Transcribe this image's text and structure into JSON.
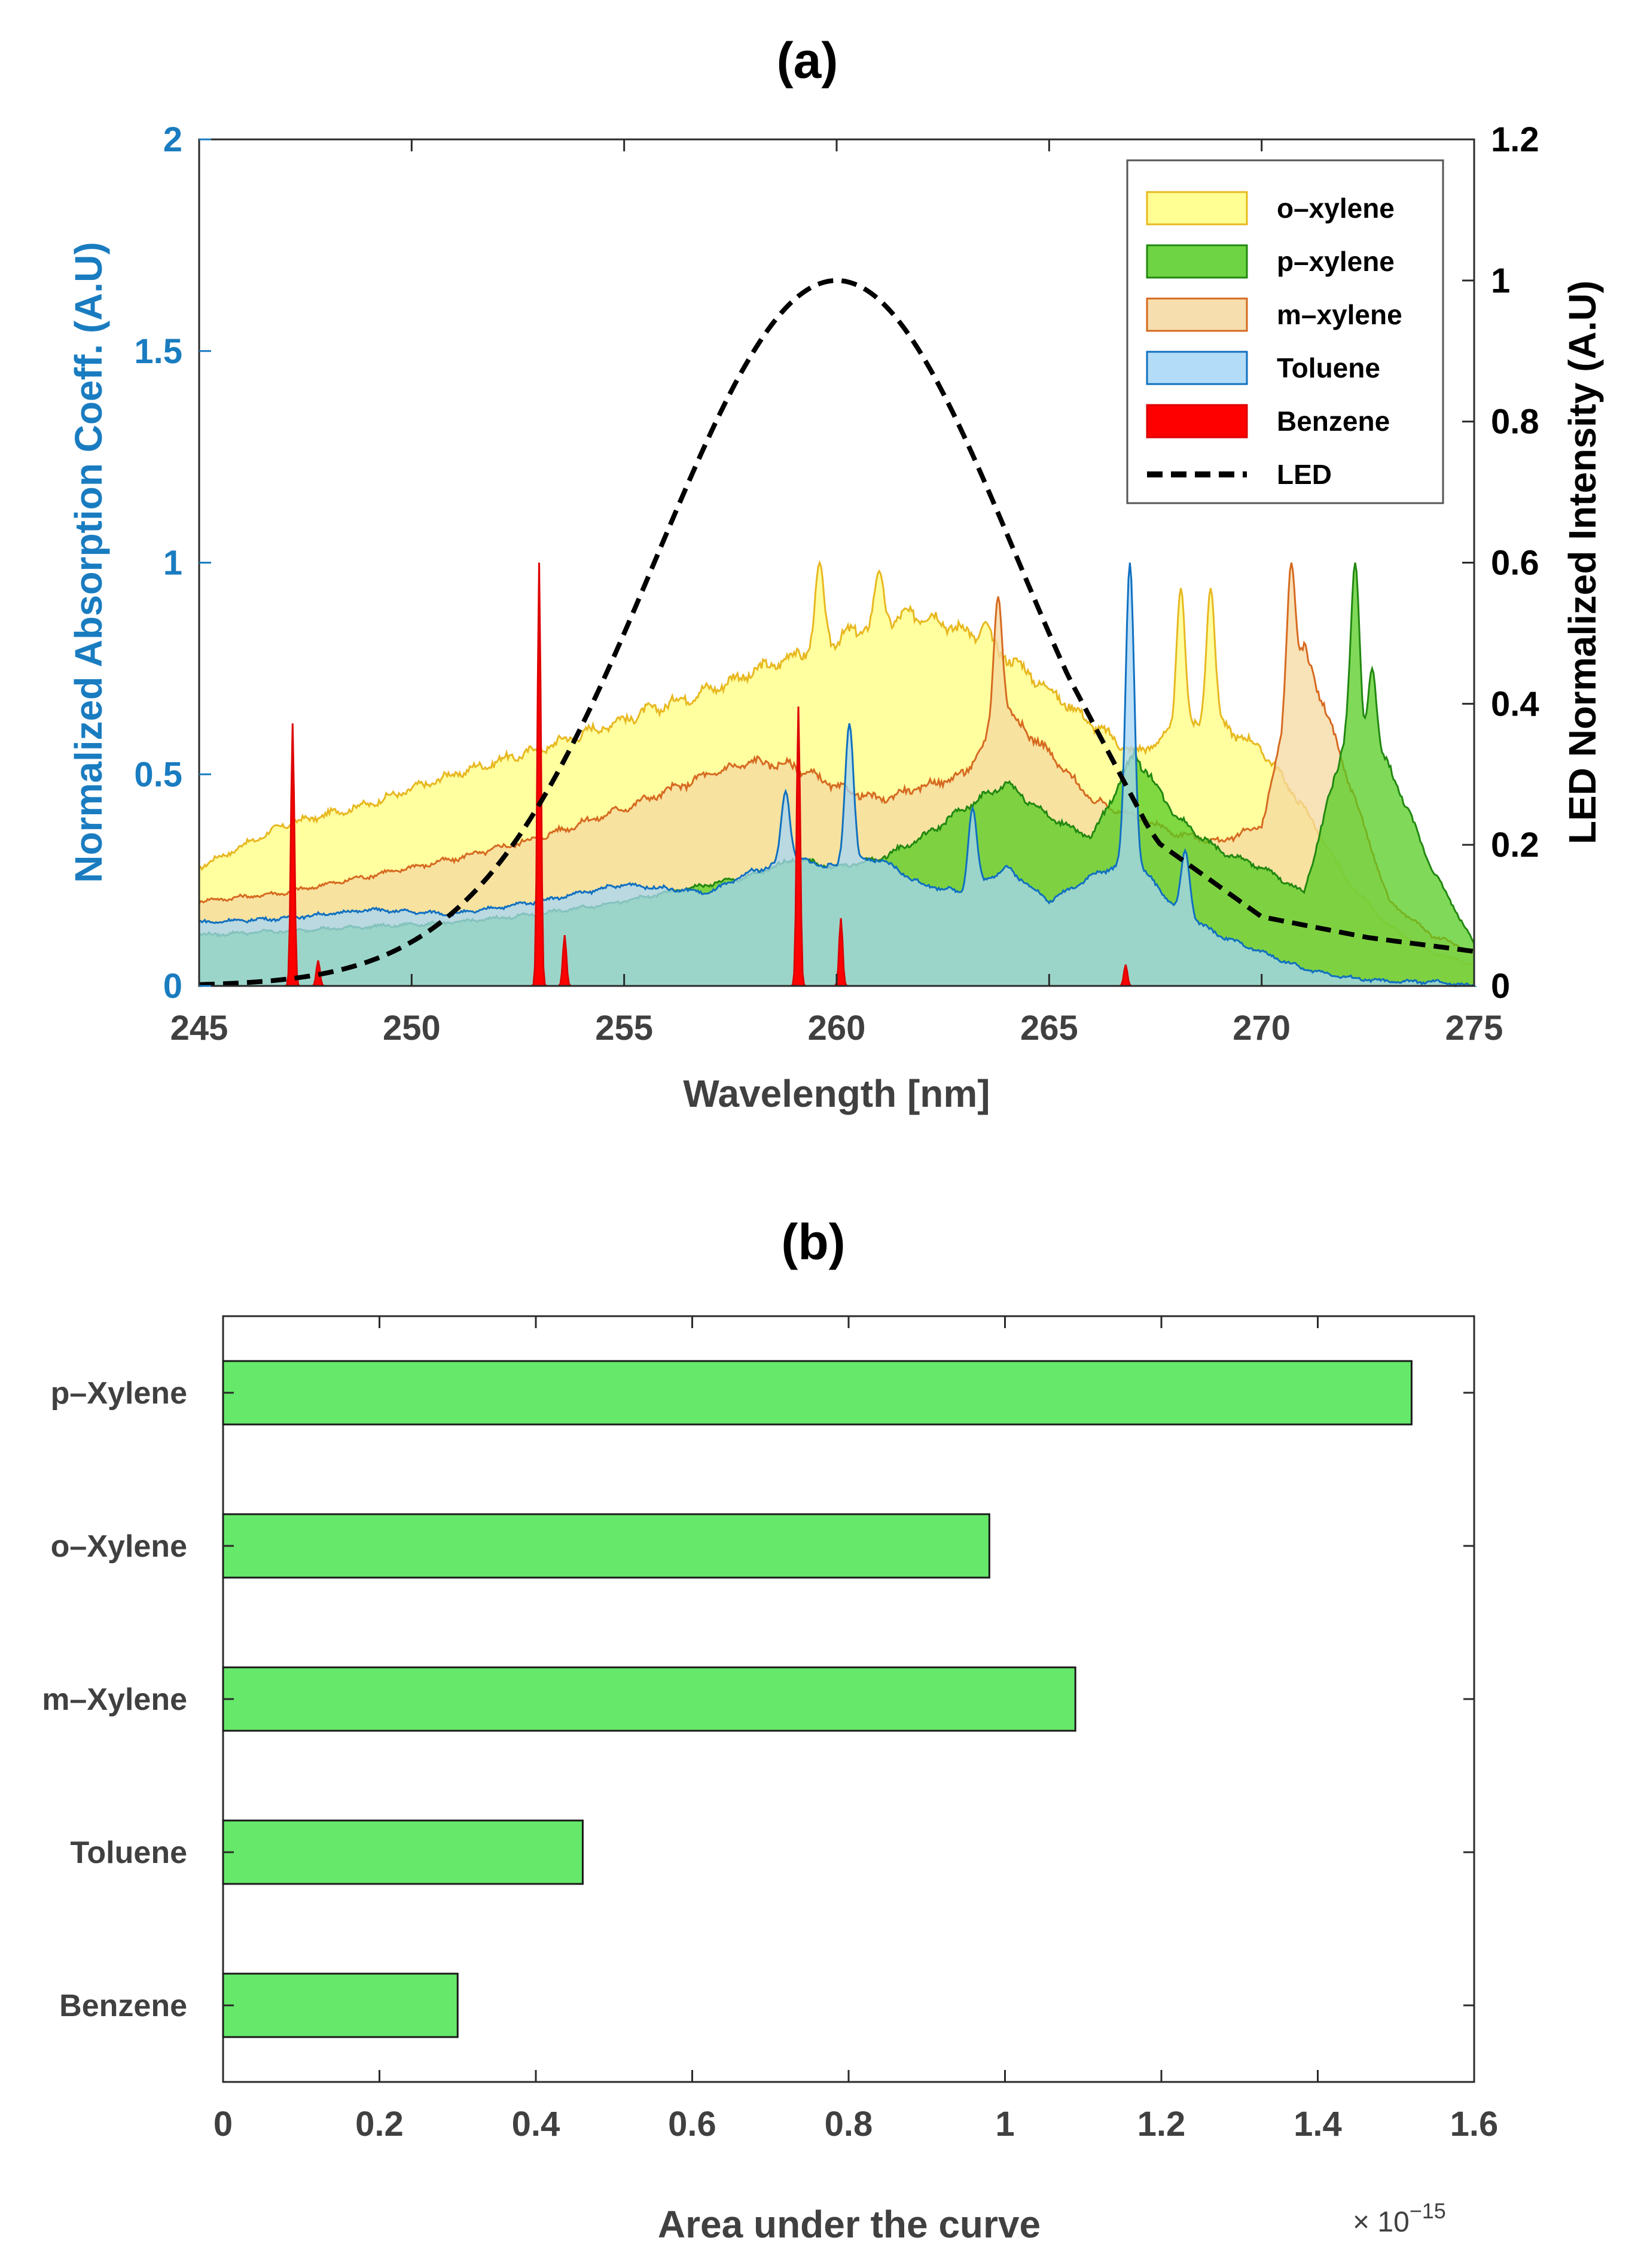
{
  "chart_data": [
    {
      "panel_label": "(a)",
      "type": "area",
      "xlabel": "Wavelength [nm]",
      "ylabel": "Normalized Absorption Coeff. (A.U)",
      "y2label": "LED Normalized Intensity (A.U)",
      "xlim": [
        245,
        275
      ],
      "ylim": [
        0,
        2
      ],
      "y2lim": [
        0,
        1.2
      ],
      "xticks": [
        245,
        250,
        255,
        260,
        265,
        270,
        275
      ],
      "xtick_labels": [
        "245",
        "250",
        "255",
        "260",
        "265",
        "270",
        "275"
      ],
      "yticks": [
        0,
        0.5,
        1,
        1.5,
        2
      ],
      "ytick_labels": [
        "0",
        "0.5",
        "1",
        "1.5",
        "2"
      ],
      "y2ticks": [
        0,
        0.2,
        0.4,
        0.6,
        0.8,
        1,
        1.2
      ],
      "y2tick_labels": [
        "0",
        "0.2",
        "0.4",
        "0.6",
        "0.8",
        "1",
        "1.2"
      ],
      "legend_position": "top-right",
      "series": [
        {
          "name": "o–xylene",
          "fill": "#ffff80",
          "edge": "#e8b820",
          "x": [
            245,
            247,
            249,
            251,
            253,
            255,
            257,
            258,
            259,
            260,
            261,
            262,
            263,
            264,
            265,
            266,
            267,
            268,
            269,
            270,
            271,
            272,
            273,
            274,
            275
          ],
          "y": [
            0.28,
            0.38,
            0.43,
            0.5,
            0.56,
            0.63,
            0.7,
            0.74,
            0.78,
            0.82,
            0.86,
            0.88,
            0.84,
            0.78,
            0.7,
            0.62,
            0.55,
            0.6,
            0.62,
            0.56,
            0.42,
            0.25,
            0.14,
            0.08,
            0.05
          ],
          "peaks": [
            [
              259.6,
              1.0
            ],
            [
              261.0,
              0.98
            ],
            [
              263.5,
              0.86
            ],
            [
              268.1,
              0.94
            ],
            [
              268.8,
              0.94
            ]
          ]
        },
        {
          "name": "m–xylene",
          "fill": "#f5d8a0",
          "edge": "#d66a20",
          "x": [
            245,
            247,
            249,
            251,
            253,
            255,
            257,
            258,
            259,
            260,
            261,
            262,
            263,
            264,
            265,
            266,
            267,
            268,
            269,
            270,
            271,
            272,
            273,
            274,
            275
          ],
          "y": [
            0.2,
            0.22,
            0.26,
            0.3,
            0.35,
            0.42,
            0.5,
            0.53,
            0.52,
            0.47,
            0.44,
            0.47,
            0.5,
            0.65,
            0.55,
            0.44,
            0.4,
            0.36,
            0.34,
            0.38,
            0.8,
            0.5,
            0.2,
            0.12,
            0.08
          ],
          "peaks": [
            [
              263.8,
              0.92
            ],
            [
              270.7,
              1.0
            ]
          ]
        },
        {
          "name": "p–xylene",
          "fill": "#55cc22",
          "edge": "#228811",
          "x": [
            245,
            247,
            249,
            251,
            253,
            255,
            257,
            258,
            259,
            260,
            261,
            262,
            263,
            264,
            265,
            266,
            267,
            268,
            269,
            270,
            271,
            272,
            273,
            274,
            275
          ],
          "y": [
            0.12,
            0.13,
            0.14,
            0.15,
            0.17,
            0.2,
            0.24,
            0.26,
            0.3,
            0.28,
            0.3,
            0.35,
            0.42,
            0.48,
            0.4,
            0.35,
            0.55,
            0.4,
            0.32,
            0.28,
            0.22,
            0.6,
            0.52,
            0.28,
            0.1
          ],
          "peaks": [
            [
              272.2,
              1.0
            ],
            [
              272.6,
              0.75
            ]
          ]
        },
        {
          "name": "Toluene",
          "fill": "#a6d6f7",
          "edge": "#1070c0",
          "x": [
            245,
            247,
            249,
            251,
            253,
            255,
            257,
            258,
            259,
            260,
            261,
            262,
            263,
            264,
            265,
            266,
            267,
            268,
            269,
            270,
            271,
            272,
            273,
            274,
            275
          ],
          "y": [
            0.15,
            0.16,
            0.18,
            0.17,
            0.2,
            0.24,
            0.22,
            0.27,
            0.3,
            0.28,
            0.3,
            0.24,
            0.22,
            0.28,
            0.2,
            0.26,
            0.3,
            0.18,
            0.12,
            0.08,
            0.04,
            0.02,
            0.01,
            0.01,
            0.0
          ],
          "peaks": [
            [
              258.8,
              0.46
            ],
            [
              260.3,
              0.62
            ],
            [
              263.2,
              0.42
            ],
            [
              266.9,
              1.0
            ],
            [
              268.2,
              0.32
            ]
          ]
        },
        {
          "name": "Benzene",
          "fill": "#ff0000",
          "edge": "#dd0000",
          "x": [
            245,
            275
          ],
          "y": [
            0.0,
            0.0
          ],
          "peaks": [
            [
              247.2,
              0.62
            ],
            [
              247.8,
              0.06
            ],
            [
              253.0,
              1.0
            ],
            [
              253.6,
              0.12
            ],
            [
              259.1,
              0.66
            ],
            [
              260.1,
              0.16
            ],
            [
              266.8,
              0.05
            ]
          ]
        },
        {
          "name": "LED",
          "style": "dashed",
          "axis": "right",
          "center_nm": 260,
          "fwhm_nm": 10,
          "peak_value": 1.0,
          "x": [
            245,
            247.5,
            250,
            252.5,
            255,
            257.5,
            260,
            262.5,
            265,
            267.5,
            270,
            272.5,
            275
          ],
          "y": [
            0.0,
            0.01,
            0.06,
            0.21,
            0.5,
            0.84,
            1.0,
            0.84,
            0.5,
            0.21,
            0.1,
            0.07,
            0.05
          ]
        }
      ]
    },
    {
      "panel_label": "(b)",
      "type": "bar",
      "orientation": "horizontal",
      "bar_color": "#66e86a",
      "categories": [
        "p–Xylene",
        "o–Xylene",
        "m–Xylene",
        "Toluene",
        "Benzene"
      ],
      "values": [
        1.52,
        0.98,
        1.09,
        0.46,
        0.3
      ],
      "xlabel": "Area under the curve",
      "xlim": [
        0,
        1.6
      ],
      "xticks": [
        0,
        0.2,
        0.4,
        0.6,
        0.8,
        1,
        1.2,
        1.4,
        1.6
      ],
      "xtick_labels": [
        "0",
        "0.2",
        "0.4",
        "0.6",
        "0.8",
        "1",
        "1.2",
        "1.4",
        "1.6"
      ],
      "multiplier_text": "× 10",
      "multiplier_exponent": "−15"
    }
  ]
}
